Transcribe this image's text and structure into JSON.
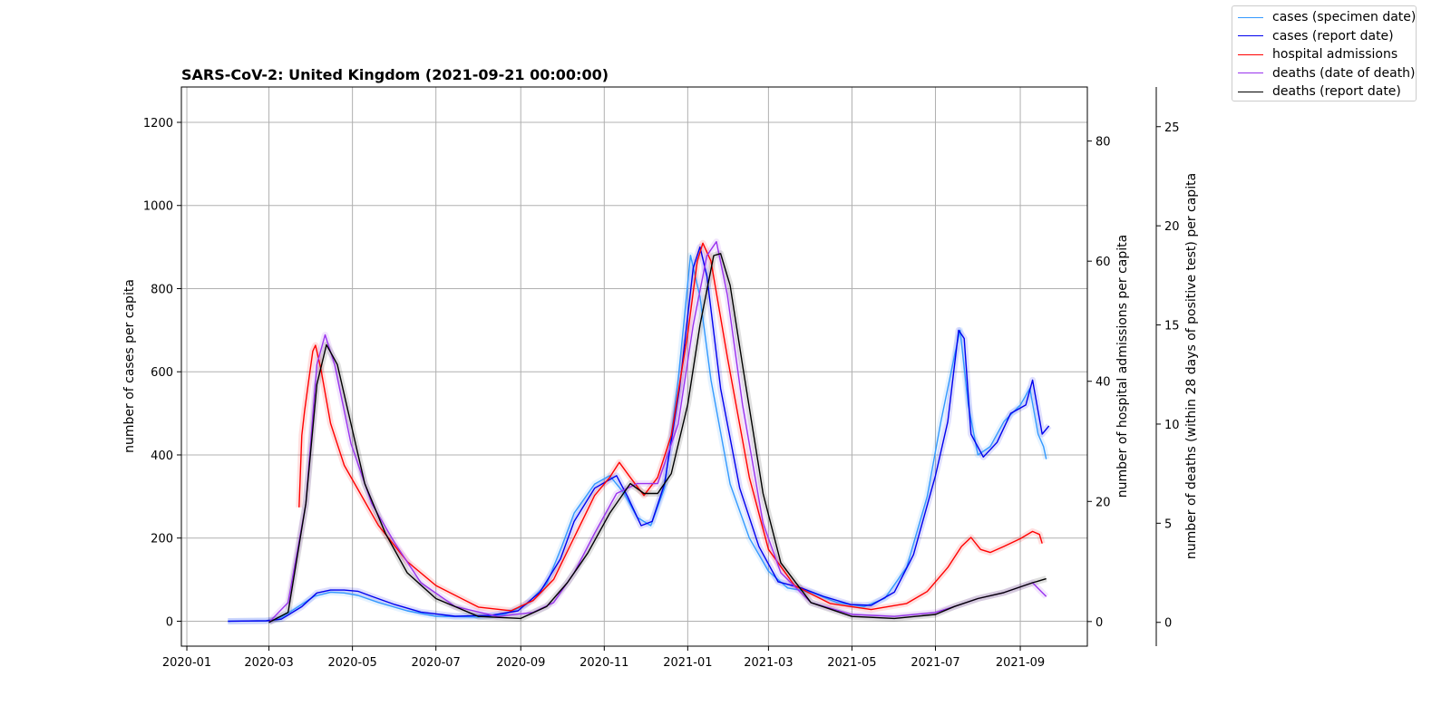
{
  "chart_data": {
    "type": "line",
    "title": "SARS-CoV-2: United Kingdom (2021-09-21 00:00:00)",
    "x_axis": {
      "type": "date",
      "range": [
        "2019-12-28",
        "2021-10-20"
      ],
      "ticks": [
        "2020-01",
        "2020-03",
        "2020-05",
        "2020-07",
        "2020-09",
        "2020-11",
        "2021-01",
        "2021-03",
        "2021-05",
        "2021-07",
        "2021-09"
      ]
    },
    "axes": {
      "cases": {
        "label": "number of cases per capita",
        "ylim": [
          -60,
          1285
        ],
        "ticks": [
          0,
          200,
          400,
          600,
          800,
          1000,
          1200
        ]
      },
      "hospital": {
        "label": "number of hospital admissions per capita",
        "ylim": [
          -4.1,
          89
        ],
        "ticks": [
          0,
          20,
          40,
          60,
          80
        ]
      },
      "deaths": {
        "label": "number of deaths (within 28 days of positive test) per capita",
        "ylim": [
          -1.2,
          27
        ],
        "ticks": [
          0,
          5,
          10,
          15,
          20,
          25
        ]
      }
    },
    "grid": true,
    "legend_position": "top-right",
    "series": [
      {
        "name": "cases (specimen date)",
        "axis": "cases",
        "color": "#3399ff",
        "points": [
          [
            "2020-01-31",
            0
          ],
          [
            "2020-02-28",
            1
          ],
          [
            "2020-03-08",
            5
          ],
          [
            "2020-03-20",
            30
          ],
          [
            "2020-04-03",
            60
          ],
          [
            "2020-04-15",
            70
          ],
          [
            "2020-04-25",
            68
          ],
          [
            "2020-05-05",
            62
          ],
          [
            "2020-05-20",
            45
          ],
          [
            "2020-06-10",
            25
          ],
          [
            "2020-07-01",
            12
          ],
          [
            "2020-08-01",
            10
          ],
          [
            "2020-08-20",
            16
          ],
          [
            "2020-09-05",
            40
          ],
          [
            "2020-09-20",
            90
          ],
          [
            "2020-10-01",
            180
          ],
          [
            "2020-10-10",
            260
          ],
          [
            "2020-10-25",
            330
          ],
          [
            "2020-11-05",
            350
          ],
          [
            "2020-11-15",
            310
          ],
          [
            "2020-11-25",
            250
          ],
          [
            "2020-12-05",
            230
          ],
          [
            "2020-12-15",
            320
          ],
          [
            "2020-12-25",
            580
          ],
          [
            "2021-01-03",
            880
          ],
          [
            "2021-01-10",
            780
          ],
          [
            "2021-01-18",
            580
          ],
          [
            "2021-02-01",
            330
          ],
          [
            "2021-02-15",
            200
          ],
          [
            "2021-03-01",
            120
          ],
          [
            "2021-03-15",
            80
          ],
          [
            "2021-04-01",
            70
          ],
          [
            "2021-04-20",
            45
          ],
          [
            "2021-05-10",
            35
          ],
          [
            "2021-05-25",
            55
          ],
          [
            "2021-06-10",
            130
          ],
          [
            "2021-06-25",
            300
          ],
          [
            "2021-07-05",
            480
          ],
          [
            "2021-07-15",
            640
          ],
          [
            "2021-07-19",
            700
          ],
          [
            "2021-07-25",
            520
          ],
          [
            "2021-08-01",
            400
          ],
          [
            "2021-08-10",
            420
          ],
          [
            "2021-08-20",
            480
          ],
          [
            "2021-09-01",
            520
          ],
          [
            "2021-09-08",
            560
          ],
          [
            "2021-09-14",
            450
          ],
          [
            "2021-09-18",
            420
          ],
          [
            "2021-09-20",
            390
          ]
        ]
      },
      {
        "name": "cases (report date)",
        "axis": "cases",
        "color": "#0000ee",
        "points": [
          [
            "2020-01-31",
            0
          ],
          [
            "2020-02-28",
            1
          ],
          [
            "2020-03-10",
            5
          ],
          [
            "2020-03-25",
            35
          ],
          [
            "2020-04-05",
            68
          ],
          [
            "2020-04-15",
            75
          ],
          [
            "2020-04-25",
            75
          ],
          [
            "2020-05-05",
            72
          ],
          [
            "2020-05-15",
            60
          ],
          [
            "2020-06-01",
            40
          ],
          [
            "2020-06-20",
            22
          ],
          [
            "2020-07-15",
            12
          ],
          [
            "2020-08-10",
            14
          ],
          [
            "2020-08-30",
            25
          ],
          [
            "2020-09-15",
            70
          ],
          [
            "2020-09-30",
            150
          ],
          [
            "2020-10-10",
            240
          ],
          [
            "2020-10-25",
            320
          ],
          [
            "2020-11-10",
            350
          ],
          [
            "2020-11-18",
            300
          ],
          [
            "2020-11-28",
            230
          ],
          [
            "2020-12-06",
            240
          ],
          [
            "2020-12-15",
            330
          ],
          [
            "2020-12-26",
            560
          ],
          [
            "2021-01-05",
            850
          ],
          [
            "2021-01-10",
            900
          ],
          [
            "2021-01-15",
            830
          ],
          [
            "2021-01-25",
            560
          ],
          [
            "2021-02-08",
            320
          ],
          [
            "2021-02-22",
            180
          ],
          [
            "2021-03-08",
            95
          ],
          [
            "2021-03-25",
            80
          ],
          [
            "2021-04-10",
            60
          ],
          [
            "2021-04-30",
            40
          ],
          [
            "2021-05-15",
            38
          ],
          [
            "2021-06-01",
            70
          ],
          [
            "2021-06-15",
            160
          ],
          [
            "2021-07-01",
            350
          ],
          [
            "2021-07-10",
            480
          ],
          [
            "2021-07-18",
            700
          ],
          [
            "2021-07-22",
            680
          ],
          [
            "2021-07-27",
            450
          ],
          [
            "2021-08-05",
            395
          ],
          [
            "2021-08-15",
            430
          ],
          [
            "2021-08-25",
            500
          ],
          [
            "2021-09-05",
            520
          ],
          [
            "2021-09-10",
            580
          ],
          [
            "2021-09-17",
            450
          ],
          [
            "2021-09-22",
            470
          ]
        ]
      },
      {
        "name": "hospital admissions",
        "axis": "hospital",
        "color": "#ff0000",
        "points": [
          [
            "2020-03-23",
            19
          ],
          [
            "2020-03-25",
            31
          ],
          [
            "2020-03-27",
            35
          ],
          [
            "2020-03-30",
            40
          ],
          [
            "2020-04-02",
            45
          ],
          [
            "2020-04-04",
            46
          ],
          [
            "2020-04-08",
            42
          ],
          [
            "2020-04-15",
            33
          ],
          [
            "2020-04-25",
            26
          ],
          [
            "2020-05-05",
            22
          ],
          [
            "2020-05-20",
            16
          ],
          [
            "2020-06-10",
            10
          ],
          [
            "2020-07-01",
            6
          ],
          [
            "2020-08-01",
            2.4
          ],
          [
            "2020-08-25",
            1.8
          ],
          [
            "2020-09-10",
            3.5
          ],
          [
            "2020-09-25",
            7
          ],
          [
            "2020-10-10",
            14
          ],
          [
            "2020-10-25",
            21
          ],
          [
            "2020-11-05",
            24
          ],
          [
            "2020-11-12",
            26.5
          ],
          [
            "2020-11-20",
            24
          ],
          [
            "2020-11-30",
            21
          ],
          [
            "2020-12-10",
            24
          ],
          [
            "2020-12-20",
            31
          ],
          [
            "2021-01-01",
            48
          ],
          [
            "2021-01-08",
            60
          ],
          [
            "2021-01-12",
            63
          ],
          [
            "2021-01-18",
            60
          ],
          [
            "2021-01-30",
            44
          ],
          [
            "2021-02-15",
            24
          ],
          [
            "2021-03-01",
            12
          ],
          [
            "2021-03-20",
            6
          ],
          [
            "2021-04-15",
            3
          ],
          [
            "2021-05-15",
            2
          ],
          [
            "2021-06-10",
            3
          ],
          [
            "2021-06-25",
            5
          ],
          [
            "2021-07-10",
            9
          ],
          [
            "2021-07-20",
            12.5
          ],
          [
            "2021-07-27",
            14
          ],
          [
            "2021-08-03",
            12
          ],
          [
            "2021-08-10",
            11.5
          ],
          [
            "2021-08-20",
            12.5
          ],
          [
            "2021-09-01",
            13.8
          ],
          [
            "2021-09-10",
            15
          ],
          [
            "2021-09-15",
            14.5
          ],
          [
            "2021-09-17",
            13
          ]
        ]
      },
      {
        "name": "deaths (date of death)",
        "axis": "deaths",
        "color": "#9933ee",
        "points": [
          [
            "2020-03-01",
            0
          ],
          [
            "2020-03-15",
            1
          ],
          [
            "2020-03-28",
            6
          ],
          [
            "2020-04-05",
            13
          ],
          [
            "2020-04-11",
            14.5
          ],
          [
            "2020-04-18",
            13
          ],
          [
            "2020-04-30",
            9
          ],
          [
            "2020-05-15",
            6
          ],
          [
            "2020-06-01",
            4
          ],
          [
            "2020-06-20",
            2
          ],
          [
            "2020-07-15",
            0.8
          ],
          [
            "2020-08-15",
            0.3
          ],
          [
            "2020-09-10",
            0.5
          ],
          [
            "2020-09-25",
            1
          ],
          [
            "2020-10-10",
            2.5
          ],
          [
            "2020-10-25",
            4.5
          ],
          [
            "2020-11-10",
            6.5
          ],
          [
            "2020-11-25",
            7
          ],
          [
            "2020-12-10",
            7
          ],
          [
            "2020-12-25",
            10
          ],
          [
            "2021-01-05",
            15
          ],
          [
            "2021-01-15",
            18.5
          ],
          [
            "2021-01-22",
            19.2
          ],
          [
            "2021-01-30",
            16.5
          ],
          [
            "2021-02-10",
            11
          ],
          [
            "2021-02-25",
            5
          ],
          [
            "2021-03-10",
            2.5
          ],
          [
            "2021-04-01",
            1
          ],
          [
            "2021-05-01",
            0.4
          ],
          [
            "2021-06-01",
            0.3
          ],
          [
            "2021-07-01",
            0.5
          ],
          [
            "2021-07-15",
            0.8
          ],
          [
            "2021-08-01",
            1.2
          ],
          [
            "2021-08-20",
            1.5
          ],
          [
            "2021-09-10",
            2
          ],
          [
            "2021-09-20",
            1.3
          ]
        ]
      },
      {
        "name": "deaths (report date)",
        "axis": "deaths",
        "color": "#000000",
        "points": [
          [
            "2020-03-01",
            0
          ],
          [
            "2020-03-15",
            0.5
          ],
          [
            "2020-03-28",
            6
          ],
          [
            "2020-04-05",
            12
          ],
          [
            "2020-04-12",
            14
          ],
          [
            "2020-04-20",
            13
          ],
          [
            "2020-04-30",
            10
          ],
          [
            "2020-05-10",
            7
          ],
          [
            "2020-05-25",
            4.5
          ],
          [
            "2020-06-10",
            2.5
          ],
          [
            "2020-07-01",
            1.2
          ],
          [
            "2020-08-01",
            0.3
          ],
          [
            "2020-09-01",
            0.2
          ],
          [
            "2020-09-20",
            0.8
          ],
          [
            "2020-10-05",
            2
          ],
          [
            "2020-10-20",
            3.5
          ],
          [
            "2020-11-05",
            5.5
          ],
          [
            "2020-11-20",
            7
          ],
          [
            "2020-11-30",
            6.5
          ],
          [
            "2020-12-10",
            6.5
          ],
          [
            "2020-12-20",
            7.5
          ],
          [
            "2021-01-01",
            11
          ],
          [
            "2021-01-10",
            15
          ],
          [
            "2021-01-20",
            18.5
          ],
          [
            "2021-01-25",
            18.6
          ],
          [
            "2021-02-01",
            17
          ],
          [
            "2021-02-10",
            13
          ],
          [
            "2021-02-25",
            6.5
          ],
          [
            "2021-03-10",
            3
          ],
          [
            "2021-04-01",
            1
          ],
          [
            "2021-05-01",
            0.3
          ],
          [
            "2021-06-01",
            0.2
          ],
          [
            "2021-07-01",
            0.4
          ],
          [
            "2021-07-15",
            0.8
          ],
          [
            "2021-08-01",
            1.2
          ],
          [
            "2021-08-20",
            1.5
          ],
          [
            "2021-09-10",
            2
          ],
          [
            "2021-09-20",
            2.2
          ]
        ]
      }
    ]
  }
}
